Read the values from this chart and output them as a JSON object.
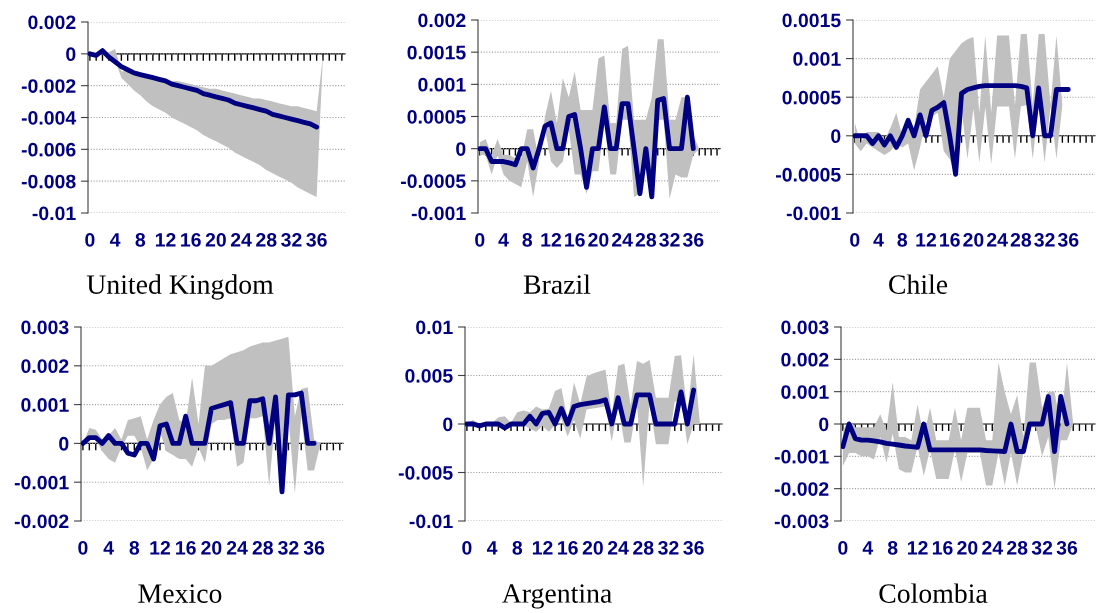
{
  "chart_data": [
    {
      "type": "line",
      "title": "United Kingdom",
      "x": [
        0,
        1,
        2,
        3,
        4,
        5,
        6,
        7,
        8,
        9,
        10,
        11,
        12,
        13,
        14,
        15,
        16,
        17,
        18,
        19,
        20,
        21,
        22,
        23,
        24,
        25,
        26,
        27,
        28,
        29,
        30,
        31,
        32,
        33,
        34,
        35,
        36,
        37
      ],
      "xlim": [
        -0.3,
        40.5
      ],
      "ylim": [
        -0.01,
        0.002
      ],
      "yticks": [
        -0.01,
        -0.008,
        -0.006,
        -0.004,
        -0.002,
        0,
        0.002
      ],
      "xticks": [
        0,
        {
          "value": 1,
          "label": null
        },
        {
          "value": 2,
          "label": null
        },
        {
          "value": 3,
          "label": null
        },
        4,
        {
          "value": 5,
          "label": null
        },
        {
          "value": 6,
          "label": null
        },
        {
          "value": 7,
          "label": null
        },
        8,
        {
          "value": 9,
          "label": null
        },
        {
          "value": 10,
          "label": null
        },
        {
          "value": 11,
          "label": null
        },
        12,
        {
          "value": 13,
          "label": null
        },
        {
          "value": 14,
          "label": null
        },
        {
          "value": 15,
          "label": null
        },
        16,
        {
          "value": 17,
          "label": null
        },
        {
          "value": 18,
          "label": null
        },
        {
          "value": 19,
          "label": null
        },
        20,
        {
          "value": 21,
          "label": null
        },
        {
          "value": 22,
          "label": null
        },
        {
          "value": 23,
          "label": null
        },
        24,
        {
          "value": 25,
          "label": null
        },
        {
          "value": 26,
          "label": null
        },
        {
          "value": 27,
          "label": null
        },
        28,
        {
          "value": 29,
          "label": null
        },
        {
          "value": 30,
          "label": null
        },
        {
          "value": 31,
          "label": null
        },
        32,
        {
          "value": 33,
          "label": null
        },
        {
          "value": 34,
          "label": null
        },
        {
          "value": 35,
          "label": null
        },
        36,
        {
          "value": 37,
          "label": null
        },
        {
          "value": 38,
          "label": null
        },
        {
          "value": 39,
          "label": null
        },
        {
          "value": 40,
          "label": null
        }
      ],
      "grid": "y",
      "series": [
        {
          "color": "#000080",
          "values": [
            0,
            -0.0001,
            0.0002,
            -0.0002,
            -0.0005,
            -0.0008,
            -0.001,
            -0.0012,
            -0.0013,
            -0.0014,
            -0.0015,
            -0.0016,
            -0.0017,
            -0.0019,
            -0.002,
            -0.0021,
            -0.0022,
            -0.0023,
            -0.0025,
            -0.0026,
            -0.0027,
            -0.0028,
            -0.0029,
            -0.0031,
            -0.0032,
            -0.0033,
            -0.0034,
            -0.0035,
            -0.0036,
            -0.0038,
            -0.0039,
            -0.004,
            -0.0041,
            -0.0042,
            -0.0043,
            -0.0044,
            -0.0046,
            null
          ],
          "upper": [
            0,
            0,
            0.0002,
            0.0001,
            0.0003,
            -0.0011,
            -0.0011,
            -0.0012,
            -0.0012,
            -0.0013,
            -0.0014,
            -0.0015,
            -0.0016,
            -0.0017,
            -0.0017,
            -0.0018,
            -0.0019,
            -0.002,
            -0.0021,
            -0.0022,
            -0.0022,
            -0.0023,
            -0.0024,
            -0.0025,
            -0.0026,
            -0.0027,
            -0.0028,
            -0.0028,
            -0.0029,
            -0.003,
            -0.0031,
            -0.0032,
            -0.0033,
            -0.0033,
            -0.0034,
            -0.0035,
            -0.0036,
            -0.0001
          ],
          "lower": [
            0,
            -0.0001,
            0,
            -0.0002,
            -0.0004,
            -0.0015,
            -0.0019,
            -0.0023,
            -0.0026,
            -0.003,
            -0.0033,
            -0.0035,
            -0.0037,
            -0.004,
            -0.0042,
            -0.0044,
            -0.0046,
            -0.0048,
            -0.0051,
            -0.0053,
            -0.0055,
            -0.0057,
            -0.0059,
            -0.0062,
            -0.0064,
            -0.0066,
            -0.0068,
            -0.007,
            -0.0073,
            -0.0075,
            -0.0077,
            -0.0079,
            -0.0081,
            -0.0084,
            -0.0086,
            -0.0088,
            -0.009,
            -0.0001
          ]
        }
      ]
    },
    {
      "type": "line",
      "title": "Brazil",
      "x": [
        0,
        1,
        2,
        3,
        4,
        5,
        6,
        7,
        8,
        9,
        10,
        11,
        12,
        13,
        14,
        15,
        16,
        17,
        18,
        19,
        20,
        21,
        22,
        23,
        24,
        25,
        26,
        27,
        28,
        29,
        30,
        31,
        32,
        33,
        34,
        35,
        36,
        37
      ],
      "xlim": [
        -0.3,
        40.5
      ],
      "ylim": [
        -0.001,
        0.002
      ],
      "yticks": [
        -0.001,
        -0.0005,
        0,
        0.0005,
        0.001,
        0.0015,
        0.002
      ],
      "xticks": [
        0,
        {
          "value": 1,
          "label": null
        },
        {
          "value": 2,
          "label": null
        },
        {
          "value": 3,
          "label": null
        },
        4,
        {
          "value": 5,
          "label": null
        },
        {
          "value": 6,
          "label": null
        },
        {
          "value": 7,
          "label": null
        },
        8,
        {
          "value": 9,
          "label": null
        },
        {
          "value": 10,
          "label": null
        },
        {
          "value": 11,
          "label": null
        },
        12,
        {
          "value": 13,
          "label": null
        },
        {
          "value": 14,
          "label": null
        },
        {
          "value": 15,
          "label": null
        },
        16,
        {
          "value": 17,
          "label": null
        },
        {
          "value": 18,
          "label": null
        },
        {
          "value": 19,
          "label": null
        },
        20,
        {
          "value": 21,
          "label": null
        },
        {
          "value": 22,
          "label": null
        },
        {
          "value": 23,
          "label": null
        },
        24,
        {
          "value": 25,
          "label": null
        },
        {
          "value": 26,
          "label": null
        },
        {
          "value": 27,
          "label": null
        },
        28,
        {
          "value": 29,
          "label": null
        },
        {
          "value": 30,
          "label": null
        },
        {
          "value": 31,
          "label": null
        },
        32,
        {
          "value": 33,
          "label": null
        },
        {
          "value": 34,
          "label": null
        },
        {
          "value": 35,
          "label": null
        },
        36,
        {
          "value": 37,
          "label": null
        },
        {
          "value": 38,
          "label": null
        },
        {
          "value": 39,
          "label": null
        },
        {
          "value": 40,
          "label": null
        }
      ],
      "grid": "y",
      "series": [
        {
          "color": "#000080",
          "values": [
            0,
            0,
            -0.0002,
            -0.0002,
            -0.0002,
            -0.00022,
            -0.00025,
            0,
            0,
            -0.0003,
            0,
            0.00035,
            0.0004,
            0,
            0,
            0.0005,
            0.00053,
            0,
            -0.0006,
            0,
            0,
            0.00065,
            0,
            0,
            0.0007,
            0.0007,
            0,
            -0.0007,
            0,
            -0.00075,
            0.00075,
            0.00078,
            0,
            0,
            0,
            0.0008,
            0,
            null
          ],
          "upper": [
            0.0001,
            0.00015,
            -0.0001,
            0.00015,
            -0.0001,
            -0.0001,
            -0.00015,
            -0.00015,
            0.0003,
            0.0003,
            -0.0002,
            0.0005,
            0.0009,
            0.0004,
            0.0011,
            0.0008,
            0.0012,
            0.0006,
            0.0006,
            0.0006,
            0.0014,
            0.00145,
            0.0004,
            0.0004,
            0.00155,
            0.0016,
            0.00045,
            0.00045,
            0.00045,
            0.0008,
            0.0017,
            0.0017,
            0.00045,
            0.00045,
            0.0008,
            0.0008,
            0.0002,
            0
          ],
          "lower": [
            -0.0001,
            -0.0001,
            -0.0004,
            -0.0001,
            -0.0004,
            -0.0005,
            -0.00055,
            -0.0006,
            -0.0002,
            -0.00075,
            -0.0002,
            0.0003,
            -0.0002,
            -0.0003,
            -0.0002,
            0.0003,
            -0.0004,
            -0.0004,
            -0.0007,
            -0.00035,
            -0.00035,
            0.0004,
            -0.0004,
            -0.0004,
            0.00045,
            0.00045,
            -0.00075,
            -0.0007,
            -0.0003,
            -0.00075,
            0.00045,
            0.00045,
            -0.00078,
            -0.0004,
            -0.00045,
            -0.00045,
            -0.0001,
            0
          ]
        }
      ]
    },
    {
      "type": "line",
      "title": "Chile",
      "x": [
        0,
        1,
        2,
        3,
        4,
        5,
        6,
        7,
        8,
        9,
        10,
        11,
        12,
        13,
        14,
        15,
        16,
        17,
        18,
        19,
        20,
        21,
        22,
        23,
        24,
        25,
        26,
        27,
        28,
        29,
        30,
        31,
        32,
        33,
        34,
        35,
        36,
        37
      ],
      "xlim": [
        -0.3,
        40.5
      ],
      "ylim": [
        -0.001,
        0.0015
      ],
      "yticks": [
        -0.001,
        -0.0005,
        0,
        0.0005,
        0.001,
        0.0015
      ],
      "xticks": [
        0,
        {
          "value": 1,
          "label": null
        },
        {
          "value": 2,
          "label": null
        },
        {
          "value": 3,
          "label": null
        },
        4,
        {
          "value": 5,
          "label": null
        },
        {
          "value": 6,
          "label": null
        },
        {
          "value": 7,
          "label": null
        },
        8,
        {
          "value": 9,
          "label": null
        },
        {
          "value": 10,
          "label": null
        },
        {
          "value": 11,
          "label": null
        },
        12,
        {
          "value": 13,
          "label": null
        },
        {
          "value": 14,
          "label": null
        },
        {
          "value": 15,
          "label": null
        },
        16,
        {
          "value": 17,
          "label": null
        },
        {
          "value": 18,
          "label": null
        },
        {
          "value": 19,
          "label": null
        },
        20,
        {
          "value": 21,
          "label": null
        },
        {
          "value": 22,
          "label": null
        },
        {
          "value": 23,
          "label": null
        },
        24,
        {
          "value": 25,
          "label": null
        },
        {
          "value": 26,
          "label": null
        },
        {
          "value": 27,
          "label": null
        },
        28,
        {
          "value": 29,
          "label": null
        },
        {
          "value": 30,
          "label": null
        },
        {
          "value": 31,
          "label": null
        },
        32,
        {
          "value": 33,
          "label": null
        },
        {
          "value": 34,
          "label": null
        },
        {
          "value": 35,
          "label": null
        },
        36,
        {
          "value": 37,
          "label": null
        },
        {
          "value": 38,
          "label": null
        },
        {
          "value": 39,
          "label": null
        },
        {
          "value": 40,
          "label": null
        }
      ],
      "grid": "y",
      "series": [
        {
          "color": "#000080",
          "values": [
            0,
            0,
            0,
            -0.0001,
            0,
            -0.00012,
            0,
            -0.00015,
            0,
            0.0002,
            0,
            0.00027,
            0,
            0.00033,
            0.00037,
            0.00043,
            0,
            -0.0005,
            0.00055,
            0.0006,
            0.00062,
            0.00064,
            0.00065,
            0.00065,
            0.00065,
            0.00065,
            0.00065,
            0.00065,
            0.00064,
            0.00062,
            0,
            0.00062,
            0,
            0,
            0.0006,
            0.0006,
            0.0006,
            null
          ],
          "upper": [
            0.00017,
            -0.0001,
            5e-05,
            5e-05,
            5e-05,
            -5e-05,
            0.0001,
            0.0003,
            0,
            0.0002,
            0.0001,
            0.0006,
            0.0007,
            0.0008,
            0.0009,
            0.0005,
            0.001,
            0.0011,
            0.0012,
            0.00125,
            0.00128,
            0.0003,
            0.0013,
            0.0003,
            0.0013,
            0.0013,
            0.0013,
            0.0004,
            0.00132,
            0.00132,
            0.0004,
            0.00132,
            0.00132,
            0.0004,
            0.0013,
            0.0004,
            0.0001,
            0
          ],
          "lower": [
            -0.0001,
            -0.0002,
            -0.0001,
            -0.00015,
            -0.0002,
            -0.00025,
            -0.0002,
            -0.0001,
            -0.00015,
            -0.0001,
            -0.00045,
            -0.00015,
            0.0002,
            0.00025,
            0.0003,
            -0.0002,
            -0.0003,
            -0.0005,
            0.00035,
            -0.0003,
            0.00035,
            -0.00035,
            0.00037,
            -0.00037,
            0.00038,
            0.00038,
            0.00038,
            -0.0003,
            0.00038,
            0.0004,
            -0.0003,
            0.0004,
            -0.00035,
            0.00038,
            -0.0003,
            0.0004,
            0.0001,
            0
          ]
        }
      ]
    },
    {
      "type": "line",
      "title": "Mexico",
      "x": [
        0,
        1,
        2,
        3,
        4,
        5,
        6,
        7,
        8,
        9,
        10,
        11,
        12,
        13,
        14,
        15,
        16,
        17,
        18,
        19,
        20,
        21,
        22,
        23,
        24,
        25,
        26,
        27,
        28,
        29,
        30,
        31,
        32,
        33,
        34,
        35,
        36,
        37
      ],
      "xlim": [
        -0.3,
        40.5
      ],
      "ylim": [
        -0.002,
        0.003
      ],
      "yticks": [
        -0.002,
        -0.001,
        0,
        0.001,
        0.002,
        0.003
      ],
      "xticks": [
        0,
        {
          "value": 1,
          "label": null
        },
        {
          "value": 2,
          "label": null
        },
        {
          "value": 3,
          "label": null
        },
        4,
        {
          "value": 5,
          "label": null
        },
        {
          "value": 6,
          "label": null
        },
        {
          "value": 7,
          "label": null
        },
        8,
        {
          "value": 9,
          "label": null
        },
        {
          "value": 10,
          "label": null
        },
        {
          "value": 11,
          "label": null
        },
        12,
        {
          "value": 13,
          "label": null
        },
        {
          "value": 14,
          "label": null
        },
        {
          "value": 15,
          "label": null
        },
        16,
        {
          "value": 17,
          "label": null
        },
        {
          "value": 18,
          "label": null
        },
        {
          "value": 19,
          "label": null
        },
        20,
        {
          "value": 21,
          "label": null
        },
        {
          "value": 22,
          "label": null
        },
        {
          "value": 23,
          "label": null
        },
        24,
        {
          "value": 25,
          "label": null
        },
        {
          "value": 26,
          "label": null
        },
        {
          "value": 27,
          "label": null
        },
        28,
        {
          "value": 29,
          "label": null
        },
        {
          "value": 30,
          "label": null
        },
        {
          "value": 31,
          "label": null
        },
        32,
        {
          "value": 33,
          "label": null
        },
        {
          "value": 34,
          "label": null
        },
        {
          "value": 35,
          "label": null
        },
        36,
        {
          "value": 37,
          "label": null
        },
        {
          "value": 38,
          "label": null
        },
        {
          "value": 39,
          "label": null
        },
        {
          "value": 40,
          "label": null
        }
      ],
      "grid": "y",
      "series": [
        {
          "color": "#000080",
          "values": [
            0,
            0.00015,
            0.00015,
            0,
            0.0002,
            0,
            0,
            -0.00025,
            -0.0003,
            0,
            0,
            -0.0004,
            0.00045,
            0.0005,
            0,
            0,
            0.0007,
            0,
            0,
            0,
            0.0009,
            0.00095,
            0.001,
            0.00105,
            0,
            0,
            0.0011,
            0.0011,
            0.00115,
            0,
            0.0012,
            -0.00125,
            0.00125,
            0.00125,
            0.0013,
            0,
            0,
            null
          ],
          "upper": [
            0,
            0.0004,
            0.00035,
            0.0001,
            0.0002,
            0.0004,
            0.0001,
            0.0006,
            0.00065,
            0.0007,
            0.0001,
            0.0006,
            0.001,
            0.0012,
            0.0013,
            0.0006,
            0.0005,
            0.0017,
            0.0005,
            0.002,
            0.002,
            0.0021,
            0.0022,
            0.0023,
            0.00235,
            0.0024,
            0.0025,
            0.00255,
            0.0026,
            0.0026,
            0.00265,
            0.0027,
            0.00275,
            0.0007,
            0.0014,
            0.00145,
            0.0001,
            0
          ],
          "lower": [
            0,
            0.0001,
            0.0001,
            -0.0002,
            -0.0004,
            -0.0005,
            -0.0001,
            0.0002,
            0.0002,
            -0.0001,
            -0.0007,
            -0.0004,
            0.0003,
            -0.0002,
            -0.0003,
            -0.0004,
            -0.0004,
            -0.0006,
            -0.0001,
            -0.0005,
            0.0005,
            0.0006,
            0.0006,
            0.00065,
            -0.0006,
            -0.0005,
            0.00065,
            0.00065,
            0.0007,
            -0.0011,
            0.0007,
            -0.0013,
            0.0007,
            -0.0013,
            0.0007,
            -0.0007,
            -0.0007,
            0
          ]
        }
      ]
    },
    {
      "type": "line",
      "title": "Argentina",
      "x": [
        0,
        1,
        2,
        3,
        4,
        5,
        6,
        7,
        8,
        9,
        10,
        11,
        12,
        13,
        14,
        15,
        16,
        17,
        18,
        19,
        20,
        21,
        22,
        23,
        24,
        25,
        26,
        27,
        28,
        29,
        30,
        31,
        32,
        33,
        34,
        35,
        36,
        37
      ],
      "xlim": [
        -0.3,
        40.5
      ],
      "ylim": [
        -0.01,
        0.01
      ],
      "yticks": [
        -0.01,
        -0.005,
        0,
        0.005,
        0.01
      ],
      "xticks": [
        0,
        {
          "value": 1,
          "label": null
        },
        {
          "value": 2,
          "label": null
        },
        {
          "value": 3,
          "label": null
        },
        4,
        {
          "value": 5,
          "label": null
        },
        {
          "value": 6,
          "label": null
        },
        {
          "value": 7,
          "label": null
        },
        8,
        {
          "value": 9,
          "label": null
        },
        {
          "value": 10,
          "label": null
        },
        {
          "value": 11,
          "label": null
        },
        12,
        {
          "value": 13,
          "label": null
        },
        {
          "value": 14,
          "label": null
        },
        {
          "value": 15,
          "label": null
        },
        16,
        {
          "value": 17,
          "label": null
        },
        {
          "value": 18,
          "label": null
        },
        {
          "value": 19,
          "label": null
        },
        20,
        {
          "value": 21,
          "label": null
        },
        {
          "value": 22,
          "label": null
        },
        {
          "value": 23,
          "label": null
        },
        24,
        {
          "value": 25,
          "label": null
        },
        {
          "value": 26,
          "label": null
        },
        {
          "value": 27,
          "label": null
        },
        28,
        {
          "value": 29,
          "label": null
        },
        {
          "value": 30,
          "label": null
        },
        {
          "value": 31,
          "label": null
        },
        32,
        {
          "value": 33,
          "label": null
        },
        {
          "value": 34,
          "label": null
        },
        {
          "value": 35,
          "label": null
        },
        36,
        {
          "value": 37,
          "label": null
        },
        {
          "value": 38,
          "label": null
        },
        {
          "value": 39,
          "label": null
        },
        {
          "value": 40,
          "label": null
        }
      ],
      "grid": "y",
      "series": [
        {
          "color": "#000080",
          "values": [
            0,
            0,
            -0.0002,
            0,
            0,
            0,
            -0.0004,
            0,
            0,
            0,
            0.0008,
            0,
            0.0011,
            0.0012,
            0,
            0.0016,
            0,
            0.0018,
            0.002,
            0.0021,
            0.0022,
            0.0023,
            0.0025,
            0,
            0.0027,
            0,
            0,
            0.003,
            0.003,
            0.003,
            0,
            0,
            0,
            0,
            0.0033,
            0,
            0.0035,
            null
          ],
          "upper": [
            0.0001,
            0.0004,
            0,
            0.0002,
            0.0001,
            0.0007,
            0.0008,
            0.0001,
            0.0012,
            0.0014,
            0.0012,
            0.0018,
            0.0015,
            0.0016,
            0.0034,
            0.0037,
            0.0004,
            0.0043,
            0.0021,
            0.0049,
            0.0052,
            0.0054,
            0.0056,
            0.001,
            0.006,
            0.0062,
            0.0019,
            0.0065,
            0.0062,
            0.0066,
            0.0027,
            0.0027,
            0.0027,
            0.007,
            0.0071,
            0.0011,
            0.0072,
            0
          ],
          "lower": [
            -0.0001,
            0,
            -0.0004,
            -0.0001,
            -0.0002,
            -0.0003,
            -0.0006,
            -0.0002,
            0.0001,
            -0.0001,
            -0.0005,
            -0.0008,
            -0.0002,
            -0.0008,
            -0.0001,
            0.0005,
            -0.0013,
            0.0004,
            -0.0015,
            0.0015,
            0.0016,
            0.0017,
            0.0018,
            -0.0018,
            0.0019,
            -0.0019,
            -0.0019,
            0.0021,
            -0.0065,
            0.0022,
            -0.0021,
            -0.0021,
            -0.0021,
            0.0023,
            0.0025,
            -0.0021,
            0,
            0
          ]
        }
      ]
    },
    {
      "type": "line",
      "title": "Colombia",
      "x": [
        0,
        1,
        2,
        3,
        4,
        5,
        6,
        7,
        8,
        9,
        10,
        11,
        12,
        13,
        14,
        15,
        16,
        17,
        18,
        19,
        20,
        21,
        22,
        23,
        24,
        25,
        26,
        27,
        28,
        29,
        30,
        31,
        32,
        33,
        34,
        35,
        36,
        37
      ],
      "xlim": [
        -0.3,
        40.5
      ],
      "ylim": [
        -0.003,
        0.003
      ],
      "yticks": [
        -0.003,
        -0.002,
        -0.001,
        0,
        0.001,
        0.002,
        0.003
      ],
      "xticks": [
        0,
        {
          "value": 1,
          "label": null
        },
        {
          "value": 2,
          "label": null
        },
        {
          "value": 3,
          "label": null
        },
        4,
        {
          "value": 5,
          "label": null
        },
        {
          "value": 6,
          "label": null
        },
        {
          "value": 7,
          "label": null
        },
        8,
        {
          "value": 9,
          "label": null
        },
        {
          "value": 10,
          "label": null
        },
        {
          "value": 11,
          "label": null
        },
        12,
        {
          "value": 13,
          "label": null
        },
        {
          "value": 14,
          "label": null
        },
        {
          "value": 15,
          "label": null
        },
        16,
        {
          "value": 17,
          "label": null
        },
        {
          "value": 18,
          "label": null
        },
        {
          "value": 19,
          "label": null
        },
        20,
        {
          "value": 21,
          "label": null
        },
        {
          "value": 22,
          "label": null
        },
        {
          "value": 23,
          "label": null
        },
        24,
        {
          "value": 25,
          "label": null
        },
        {
          "value": 26,
          "label": null
        },
        {
          "value": 27,
          "label": null
        },
        28,
        {
          "value": 29,
          "label": null
        },
        {
          "value": 30,
          "label": null
        },
        {
          "value": 31,
          "label": null
        },
        32,
        {
          "value": 33,
          "label": null
        },
        {
          "value": 34,
          "label": null
        },
        {
          "value": 35,
          "label": null
        },
        36,
        {
          "value": 37,
          "label": null
        },
        {
          "value": 38,
          "label": null
        },
        {
          "value": 39,
          "label": null
        },
        {
          "value": 40,
          "label": null
        }
      ],
      "grid": "y",
      "series": [
        {
          "color": "#000080",
          "values": [
            -0.0007,
            0,
            -0.00045,
            -0.0005,
            -0.0005,
            -0.00052,
            -0.00055,
            -0.0006,
            -0.00062,
            -0.00065,
            -0.00068,
            -0.0007,
            -0.00072,
            0,
            -0.0008,
            -0.0008,
            -0.0008,
            -0.0008,
            -0.0008,
            -0.0008,
            -0.0008,
            -0.0008,
            -0.0008,
            -0.00082,
            -0.00083,
            -0.00084,
            -0.00085,
            0,
            -0.00085,
            -0.00085,
            0,
            0,
            0,
            0.00085,
            -0.00085,
            0.00085,
            0,
            null
          ],
          "upper": [
            -0.0002,
            0.0001,
            -0.0001,
            -0.0001,
            -0.0001,
            -0.0001,
            0.0003,
            -0.0002,
            0.0013,
            -0.0004,
            -0.0004,
            -0.0005,
            0.0006,
            -0.0004,
            0.0005,
            -0.0005,
            -0.0005,
            -0.0005,
            0.0005,
            -0.0005,
            0.0005,
            0.0005,
            0.0005,
            -0.0005,
            -0.0005,
            0.0019,
            0.001,
            0.0003,
            0.0009,
            -0.0004,
            0.0019,
            0.0019,
            0.0005,
            0.001,
            0.001,
            -0.0001,
            0.0019,
            0
          ],
          "lower": [
            -0.0013,
            -0.0009,
            -0.0009,
            -0.001,
            -0.001,
            -0.0011,
            -0.0004,
            -0.0012,
            -0.0003,
            -0.0014,
            -0.0015,
            -0.0015,
            -0.0007,
            -0.0016,
            -0.0008,
            -0.0017,
            -0.0017,
            -0.0017,
            -0.0008,
            -0.0018,
            -0.0009,
            -0.0009,
            -0.0009,
            -0.0019,
            -0.0019,
            -0.0009,
            -0.0019,
            -0.0009,
            -0.0019,
            -0.0009,
            -0.0001,
            -0.0001,
            -0.001,
            -0.0004,
            -0.002,
            -0.0005,
            -0.0005,
            0
          ]
        }
      ]
    }
  ]
}
